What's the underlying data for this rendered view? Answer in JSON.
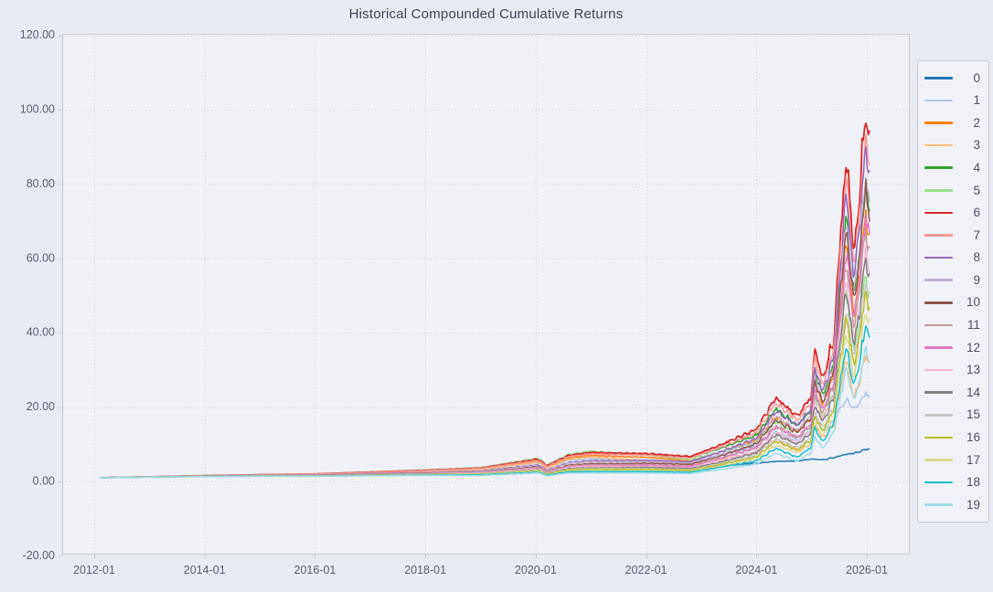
{
  "colors": {
    "page_background": "#e9ebf2",
    "plot_background": "#f0f1f6",
    "axis_spine": "#c9cbd4",
    "gridline": "#d3d5dd",
    "tick_label": "#5a5e72",
    "title_text": "#3f4458",
    "legend_background": "#f1f2f8",
    "legend_border": "#c7cad5"
  },
  "chart_data": {
    "type": "line",
    "title": "Historical Compounded Cumulative Returns",
    "xlabel": "",
    "ylabel": "",
    "grid": "dotted both axes",
    "legend_position": "right",
    "x_tick_years": [
      2012,
      2014,
      2016,
      2018,
      2020,
      2022,
      2024,
      2026
    ],
    "x_tick_labels": [
      "2012-01",
      "2014-01",
      "2016-01",
      "2018-01",
      "2020-01",
      "2022-01",
      "2024-01",
      "2026-01"
    ],
    "y_ticks": [
      -20,
      0,
      20,
      40,
      60,
      80,
      100,
      120
    ],
    "y_tick_labels": [
      "-20.00",
      "0.00",
      "20.00",
      "40.00",
      "60.00",
      "80.00",
      "100.00",
      "120.00"
    ],
    "xlim": [
      2011.42,
      2026.78
    ],
    "ylim": [
      -20,
      120
    ],
    "x": [
      2012.1,
      2013.0,
      2014.0,
      2015.0,
      2016.0,
      2017.0,
      2018.0,
      2019.0,
      2020.05,
      2020.2,
      2020.6,
      2021.0,
      2021.5,
      2022.0,
      2022.8,
      2023.3,
      2024.0,
      2024.35,
      2024.74,
      2025.0,
      2025.05,
      2025.2,
      2025.4,
      2025.62,
      2025.78,
      2025.98,
      2026.07
    ],
    "series": [
      {
        "label": "0",
        "color": "#1f77b4",
        "values": [
          1.0,
          1.2,
          1.4,
          1.55,
          1.6,
          1.9,
          2.1,
          2.4,
          3.7,
          2.7,
          4.0,
          4.5,
          4.3,
          4.1,
          3.7,
          4.1,
          4.9,
          5.4,
          5.5,
          6.0,
          6.0,
          5.8,
          6.4,
          7.3,
          7.6,
          8.6,
          8.8
        ]
      },
      {
        "label": "1",
        "color": "#aec7e8",
        "values": [
          1.0,
          1.22,
          1.5,
          1.7,
          1.85,
          2.3,
          2.7,
          3.1,
          5.1,
          3.6,
          5.7,
          6.1,
          6.0,
          5.8,
          5.1,
          7.0,
          9.5,
          13.5,
          11.0,
          14.0,
          17.5,
          13.5,
          16.5,
          22.0,
          19.5,
          23.5,
          23.0
        ]
      },
      {
        "label": "2",
        "color": "#ff7f0e",
        "values": [
          1.0,
          1.24,
          1.52,
          1.74,
          1.91,
          2.36,
          2.8,
          3.3,
          5.5,
          3.8,
          6.3,
          7.0,
          6.7,
          6.5,
          5.6,
          7.8,
          11.1,
          17.5,
          13.4,
          17.4,
          27.1,
          20.6,
          28.2,
          63.9,
          44.4,
          71.4,
          64.8
        ]
      },
      {
        "label": "3",
        "color": "#ffbb78",
        "values": [
          1.0,
          1.23,
          1.5,
          1.71,
          1.87,
          2.3,
          2.7,
          3.2,
          5.2,
          3.6,
          6.0,
          6.6,
          6.1,
          5.6,
          4.5,
          5.8,
          7.6,
          11.4,
          8.2,
          10.2,
          15.7,
          11.6,
          15.2,
          33.2,
          22.1,
          33.9,
          30.6
        ]
      },
      {
        "label": "4",
        "color": "#2ca02c",
        "values": [
          1.0,
          1.25,
          1.56,
          1.81,
          2.02,
          2.53,
          3.04,
          3.7,
          6.1,
          4.3,
          7.1,
          8.0,
          7.6,
          7.3,
          6.3,
          8.7,
          12.4,
          19.6,
          15.0,
          19.4,
          30.3,
          23.0,
          31.4,
          71.2,
          49.4,
          79.3,
          72.0
        ]
      },
      {
        "label": "5",
        "color": "#98df8a",
        "values": [
          1.0,
          1.26,
          1.57,
          1.83,
          2.04,
          2.57,
          3.1,
          3.7,
          6.3,
          4.4,
          7.3,
          8.2,
          7.6,
          7.1,
          5.8,
          7.8,
          10.5,
          16.1,
          11.8,
          15.0,
          23.2,
          17.3,
          23.2,
          51.3,
          34.9,
          54.7,
          49.5
        ]
      },
      {
        "label": "6",
        "color": "#d62728",
        "values": [
          1.0,
          1.25,
          1.55,
          1.8,
          2.0,
          2.5,
          3.0,
          3.6,
          6.0,
          4.2,
          7.0,
          7.8,
          7.6,
          7.5,
          6.7,
          9.5,
          14.0,
          22.5,
          17.5,
          23.0,
          36.0,
          27.5,
          38.0,
          87.0,
          61.0,
          99.0,
          90.0
        ]
      },
      {
        "label": "7",
        "color": "#ff9896",
        "values": [
          1.0,
          1.24,
          1.53,
          1.77,
          1.96,
          2.43,
          2.9,
          3.5,
          5.7,
          4.0,
          6.7,
          7.4,
          7.2,
          7.1,
          6.3,
          8.9,
          13.1,
          21.1,
          16.4,
          21.5,
          33.6,
          25.7,
          35.4,
          81.1,
          56.8,
          92.1,
          83.7
        ]
      },
      {
        "label": "8",
        "color": "#9467bd",
        "values": [
          1.0,
          1.22,
          1.46,
          1.63,
          1.75,
          2.12,
          2.45,
          2.8,
          4.5,
          3.1,
          5.1,
          5.6,
          5.6,
          5.7,
          5.3,
          7.7,
          11.6,
          18.9,
          15.0,
          19.9,
          31.2,
          24.0,
          33.4,
          77.1,
          54.4,
          89.0,
          81.0
        ]
      },
      {
        "label": "9",
        "color": "#c5b0d5",
        "values": [
          1.0,
          1.21,
          1.45,
          1.61,
          1.72,
          2.06,
          2.37,
          2.7,
          4.3,
          3.0,
          4.9,
          5.3,
          5.3,
          5.3,
          4.9,
          7.1,
          10.8,
          17.4,
          13.7,
          18.2,
          28.6,
          21.9,
          30.5,
          70.4,
          49.7,
          81.1,
          73.8
        ]
      },
      {
        "label": "10",
        "color": "#8c564b",
        "values": [
          1.0,
          1.2,
          1.43,
          1.58,
          1.67,
          1.98,
          2.25,
          2.5,
          4.0,
          2.7,
          4.4,
          4.8,
          4.8,
          4.9,
          4.6,
          6.6,
          10.1,
          16.5,
          13.1,
          17.4,
          27.3,
          21.0,
          29.3,
          67.5,
          47.8,
          78.1,
          71.1
        ]
      },
      {
        "label": "11",
        "color": "#c49c94",
        "values": [
          1.0,
          1.2,
          1.41,
          1.55,
          1.63,
          1.92,
          2.17,
          2.4,
          3.8,
          2.6,
          4.2,
          4.5,
          4.5,
          4.5,
          4.1,
          6.0,
          9.0,
          14.6,
          11.5,
          15.2,
          23.8,
          18.3,
          25.4,
          58.5,
          41.2,
          67.3,
          61.2
        ]
      },
      {
        "label": "12",
        "color": "#e377c2",
        "values": [
          1.0,
          1.19,
          1.4,
          1.53,
          1.6,
          1.88,
          2.11,
          2.3,
          3.6,
          2.5,
          4.0,
          4.3,
          4.3,
          4.4,
          4.1,
          6.0,
          9.2,
          14.9,
          11.9,
          15.8,
          24.8,
          19.1,
          26.6,
          61.4,
          43.5,
          71.2,
          64.8
        ]
      },
      {
        "label": "13",
        "color": "#f7b6d2",
        "values": [
          1.0,
          1.19,
          1.39,
          1.52,
          1.58,
          1.84,
          2.05,
          2.3,
          3.4,
          2.4,
          3.8,
          4.1,
          4.0,
          4.1,
          3.7,
          5.4,
          8.2,
          13.2,
          10.4,
          13.8,
          21.6,
          16.6,
          23.1,
          53.2,
          37.6,
          61.3,
          55.8
        ]
      },
      {
        "label": "14",
        "color": "#7f7f7f",
        "values": [
          1.0,
          1.19,
          1.38,
          1.49,
          1.54,
          1.79,
          1.97,
          2.1,
          3.2,
          2.2,
          3.5,
          3.7,
          3.7,
          3.8,
          3.5,
          5.0,
          7.7,
          12.6,
          10.0,
          13.2,
          20.8,
          16.0,
          22.3,
          51.3,
          36.3,
          59.4,
          54.0
        ]
      },
      {
        "label": "15",
        "color": "#c7c7c7",
        "values": [
          1.0,
          1.18,
          1.37,
          1.47,
          1.52,
          1.74,
          1.91,
          2.1,
          3.1,
          2.1,
          3.3,
          3.5,
          3.5,
          3.5,
          3.2,
          4.7,
          7.1,
          11.5,
          9.1,
          12.0,
          18.8,
          14.5,
          20.1,
          46.4,
          32.7,
          53.4,
          48.6
        ]
      },
      {
        "label": "16",
        "color": "#bcbd22",
        "values": [
          1.0,
          1.18,
          1.36,
          1.46,
          1.49,
          1.7,
          1.85,
          2.0,
          2.9,
          2.0,
          3.1,
          3.3,
          3.3,
          3.3,
          3.0,
          4.4,
          6.6,
          10.8,
          8.5,
          11.3,
          17.7,
          13.6,
          19.0,
          43.8,
          30.9,
          50.5,
          45.9
        ]
      },
      {
        "label": "17",
        "color": "#dbdb8d",
        "values": [
          1.0,
          1.17,
          1.35,
          1.43,
          1.45,
          1.65,
          1.77,
          1.9,
          2.7,
          1.8,
          2.8,
          3.0,
          2.9,
          3.0,
          2.7,
          4.0,
          6.0,
          9.8,
          7.7,
          10.2,
          16.0,
          12.3,
          17.1,
          39.5,
          27.8,
          45.5,
          41.4
        ]
      },
      {
        "label": "18",
        "color": "#17becf",
        "values": [
          1.0,
          1.17,
          1.34,
          1.41,
          1.43,
          1.61,
          1.71,
          1.8,
          2.5,
          1.7,
          2.6,
          2.7,
          2.7,
          2.7,
          2.5,
          3.7,
          5.5,
          8.9,
          6.5,
          9.3,
          14.7,
          10.5,
          15.7,
          36.0,
          25.4,
          41.6,
          37.8
        ]
      },
      {
        "label": "19",
        "color": "#9edae5",
        "values": [
          1.0,
          1.16,
          1.32,
          1.38,
          1.38,
          1.54,
          1.61,
          1.6,
          2.3,
          1.5,
          2.3,
          2.3,
          2.3,
          2.3,
          2.1,
          3.1,
          4.7,
          7.6,
          5.4,
          7.9,
          12.4,
          8.8,
          13.2,
          30.5,
          21.5,
          35.1,
          32.0
        ]
      }
    ]
  }
}
